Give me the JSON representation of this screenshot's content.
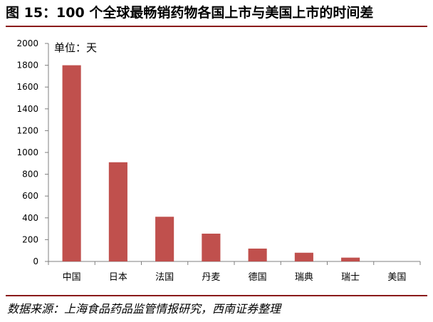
{
  "figure": {
    "title": "图 15：100 个全球最畅销药物各国上市与美国上市的时间差",
    "source": "数据来源：上海食品药品监管情报研究，西南证券整理"
  },
  "colors": {
    "bar": "#c0504d",
    "rule": "#8a1a1a",
    "axis": "#7f7f7f"
  },
  "chart_data": {
    "type": "bar",
    "title": "",
    "unit_label": "单位：天",
    "xlabel": "",
    "ylabel": "",
    "categories": [
      "中国",
      "日本",
      "法国",
      "丹麦",
      "德国",
      "瑞典",
      "瑞士",
      "美国"
    ],
    "values": [
      1800,
      910,
      410,
      255,
      118,
      80,
      35,
      0
    ],
    "ylim": [
      0,
      2000
    ],
    "yticks": [
      0,
      200,
      400,
      600,
      800,
      1000,
      1200,
      1400,
      1600,
      1800,
      2000
    ],
    "grid": false,
    "legend": "none"
  }
}
